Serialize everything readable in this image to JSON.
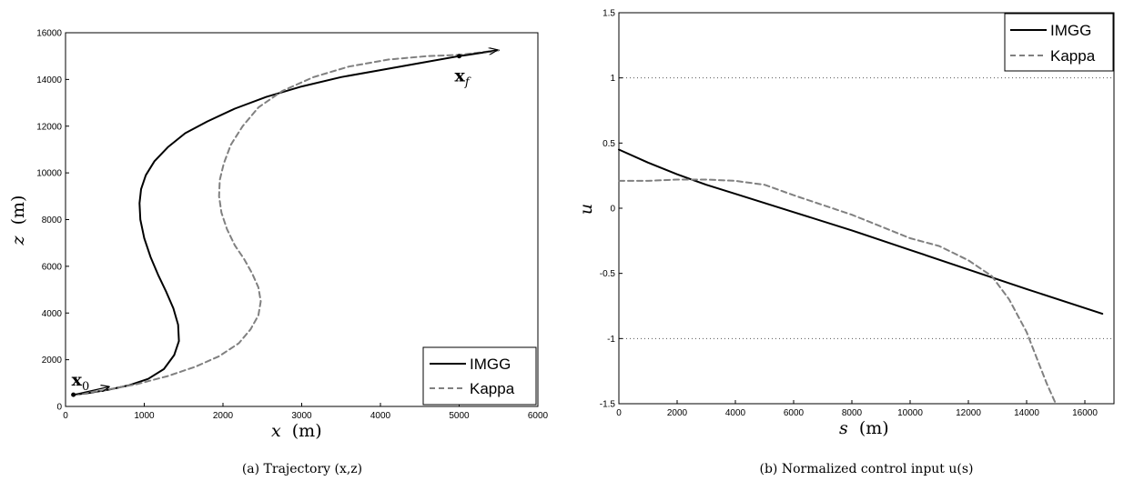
{
  "chart_data": [
    {
      "type": "line",
      "caption": "(a)  Trajectory (x,z)",
      "xlabel": "x",
      "xunit": "(m)",
      "ylabel": "z",
      "yunit": "(m)",
      "xlim": [
        0,
        6000
      ],
      "ylim": [
        0,
        16000
      ],
      "xticks": [
        0,
        1000,
        2000,
        3000,
        4000,
        5000,
        6000
      ],
      "yticks": [
        0,
        2000,
        4000,
        6000,
        8000,
        10000,
        12000,
        14000,
        16000
      ],
      "legend_position": "bottom-right",
      "grid": false,
      "annotations": [
        {
          "text": "x",
          "sub": "0",
          "x": 100,
          "z": 500
        },
        {
          "text": "x",
          "sub": "f",
          "x": 5000,
          "z": 15000
        }
      ],
      "series": [
        {
          "name": "IMGG",
          "style": "solid",
          "color": "#000000",
          "x": [
            100,
            300,
            550,
            800,
            1050,
            1250,
            1380,
            1440,
            1430,
            1370,
            1280,
            1180,
            1080,
            1000,
            950,
            940,
            960,
            1020,
            1130,
            1300,
            1520,
            1800,
            2150,
            2550,
            3000,
            3500,
            4000,
            4500,
            5000,
            5500
          ],
          "z": [
            500,
            580,
            720,
            900,
            1180,
            1600,
            2200,
            2800,
            3500,
            4200,
            4900,
            5600,
            6400,
            7200,
            8000,
            8700,
            9300,
            9900,
            10500,
            11100,
            11700,
            12200,
            12750,
            13250,
            13700,
            14100,
            14400,
            14700,
            15000,
            15250
          ]
        },
        {
          "name": "Kappa",
          "style": "dashed",
          "color": "#808080",
          "x": [
            100,
            500,
            900,
            1300,
            1650,
            1950,
            2200,
            2350,
            2450,
            2480,
            2450,
            2370,
            2270,
            2150,
            2050,
            1980,
            1950,
            1960,
            2010,
            2100,
            2250,
            2450,
            2750,
            3150,
            3600,
            4100,
            4600,
            5000,
            5500
          ],
          "z": [
            500,
            700,
            950,
            1300,
            1700,
            2150,
            2700,
            3300,
            3900,
            4500,
            5100,
            5700,
            6300,
            6900,
            7600,
            8300,
            9000,
            9700,
            10400,
            11200,
            12000,
            12800,
            13500,
            14100,
            14550,
            14850,
            15000,
            15050,
            15250
          ]
        }
      ]
    },
    {
      "type": "line",
      "caption": "(b)  Normalized control input u(s)",
      "xlabel": "s",
      "xunit": "(m)",
      "ylabel": "u",
      "yunit": "",
      "xlim": [
        0,
        17000
      ],
      "ylim": [
        -1.5,
        1.5
      ],
      "xticks": [
        0,
        2000,
        4000,
        6000,
        8000,
        10000,
        12000,
        14000,
        16000
      ],
      "yticks": [
        -1.5,
        -1,
        -0.5,
        0,
        0.5,
        1,
        1.5
      ],
      "ytick_labels": [
        "-1.5",
        "-1",
        "-0.5",
        "0",
        "0.5",
        "1",
        "1.5"
      ],
      "legend_position": "top-right",
      "grid": false,
      "reference_lines": [
        1,
        -1
      ],
      "series": [
        {
          "name": "IMGG",
          "style": "solid",
          "color": "#000000",
          "x": [
            0,
            1000,
            2000,
            3000,
            4000,
            6000,
            8000,
            10000,
            12000,
            14000,
            16600
          ],
          "y": [
            0.45,
            0.35,
            0.26,
            0.18,
            0.11,
            -0.03,
            -0.17,
            -0.32,
            -0.47,
            -0.62,
            -0.81
          ]
        },
        {
          "name": "Kappa",
          "style": "dashed",
          "color": "#808080",
          "x": [
            0,
            1000,
            2000,
            3000,
            4000,
            5000,
            6000,
            8000,
            10000,
            11000,
            12000,
            12800,
            13400,
            14000,
            14400,
            14700,
            14900,
            15000
          ],
          "y": [
            0.21,
            0.21,
            0.22,
            0.22,
            0.21,
            0.18,
            0.1,
            -0.05,
            -0.23,
            -0.29,
            -0.4,
            -0.52,
            -0.7,
            -0.95,
            -1.18,
            -1.35,
            -1.45,
            -1.5
          ]
        }
      ]
    }
  ]
}
